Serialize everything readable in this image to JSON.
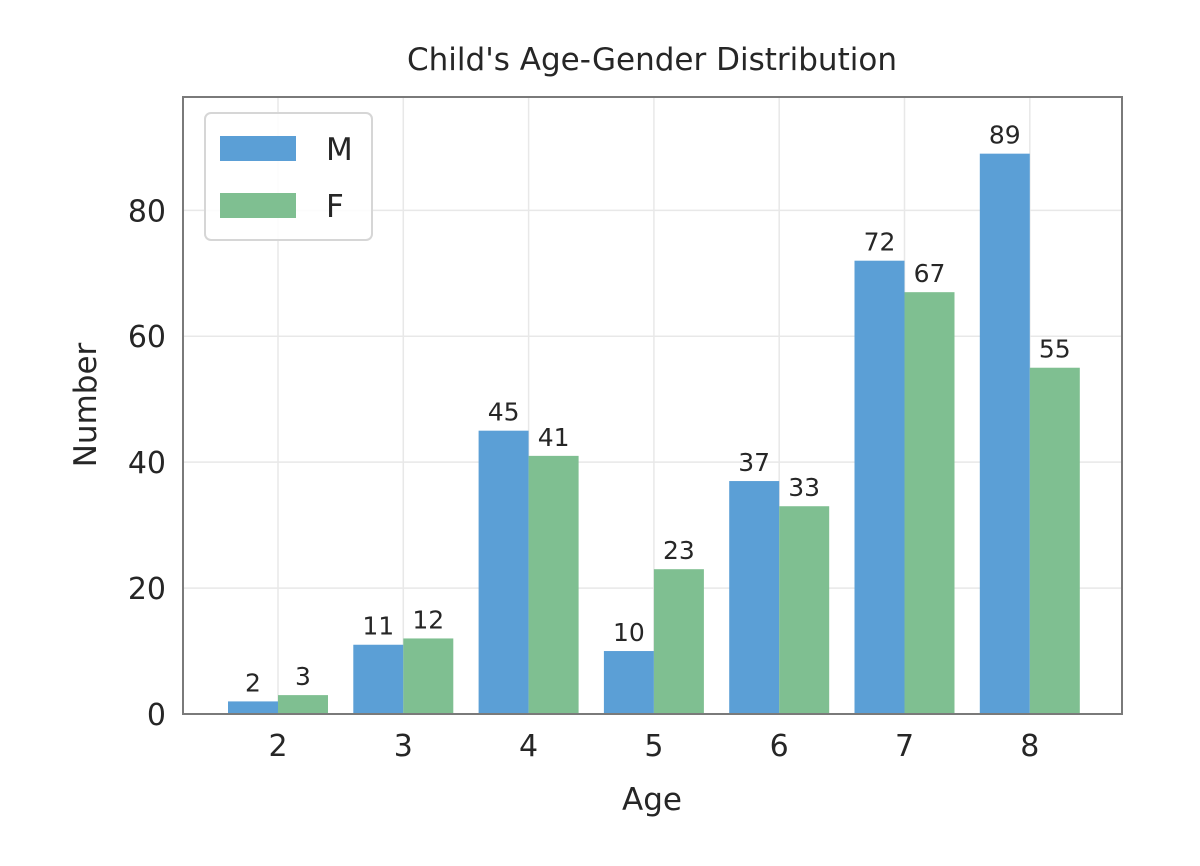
{
  "chart_data": {
    "type": "bar",
    "title": "Child's Age-Gender Distribution",
    "xlabel": "Age",
    "ylabel": "Number",
    "categories": [
      "2",
      "3",
      "4",
      "5",
      "6",
      "7",
      "8"
    ],
    "series": [
      {
        "name": "M",
        "color": "#5b9fd6",
        "values": [
          2,
          11,
          45,
          10,
          37,
          72,
          89
        ]
      },
      {
        "name": "F",
        "color": "#7fbf91",
        "values": [
          3,
          12,
          41,
          23,
          33,
          67,
          55
        ]
      }
    ],
    "ylim": [
      0,
      98
    ],
    "yticks": [
      0,
      20,
      40,
      60,
      80
    ],
    "grid": true,
    "legend": "upper-left",
    "data_labels": true
  }
}
